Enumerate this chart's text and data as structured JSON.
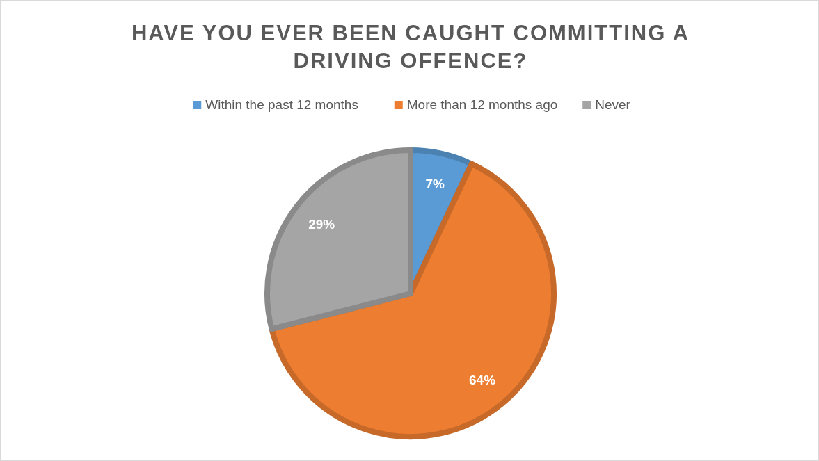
{
  "chart_data": {
    "type": "pie",
    "title": "HAVE YOU EVER BEEN CAUGHT COMMITTING A DRIVING OFFENCE?",
    "categories": [
      "Within the past 12 months",
      "More than 12 months ago",
      "Never"
    ],
    "values": [
      7,
      64,
      29
    ],
    "colors": [
      "#5b9bd5",
      "#ed7d31",
      "#a5a5a5"
    ],
    "value_labels": [
      "7%",
      "64%",
      "29%"
    ],
    "legend": "top"
  }
}
